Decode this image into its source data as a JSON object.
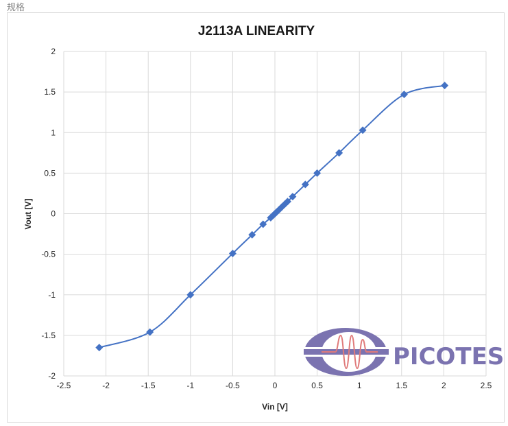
{
  "page": {
    "label": "规格"
  },
  "logo": {
    "text": "PICOTES",
    "color": "#7b73b0",
    "wave_color": "#e07a7a"
  },
  "chart_data": {
    "type": "scatter",
    "title": "J2113A LINEARITY",
    "xlabel": "Vin [V]",
    "ylabel": "Vout [V]",
    "xlim": [
      -2.5,
      2.5
    ],
    "ylim": [
      -2,
      2
    ],
    "xticks": [
      -2.5,
      -2,
      -1.5,
      -1,
      -0.5,
      0,
      0.5,
      1,
      1.5,
      2,
      2.5
    ],
    "yticks": [
      -2,
      -1.5,
      -1,
      -0.5,
      0,
      0.5,
      1,
      1.5,
      2
    ],
    "grid": true,
    "legend": "none",
    "color": "#4472c4",
    "marker": "diamond",
    "line": "smooth",
    "series": [
      {
        "x": [
          -2.08,
          -1.48,
          -1.0,
          -0.5,
          -0.27,
          -0.14,
          -0.05,
          -0.02,
          0.0,
          0.02,
          0.05,
          0.08,
          0.12,
          0.15,
          0.21,
          0.36,
          0.5,
          0.76,
          1.04,
          1.53,
          2.01
        ],
        "y": [
          -1.65,
          -1.46,
          -1.0,
          -0.49,
          -0.26,
          -0.13,
          -0.05,
          -0.02,
          0.0,
          0.02,
          0.05,
          0.08,
          0.12,
          0.15,
          0.21,
          0.36,
          0.5,
          0.75,
          1.03,
          1.47,
          1.58
        ]
      }
    ]
  }
}
